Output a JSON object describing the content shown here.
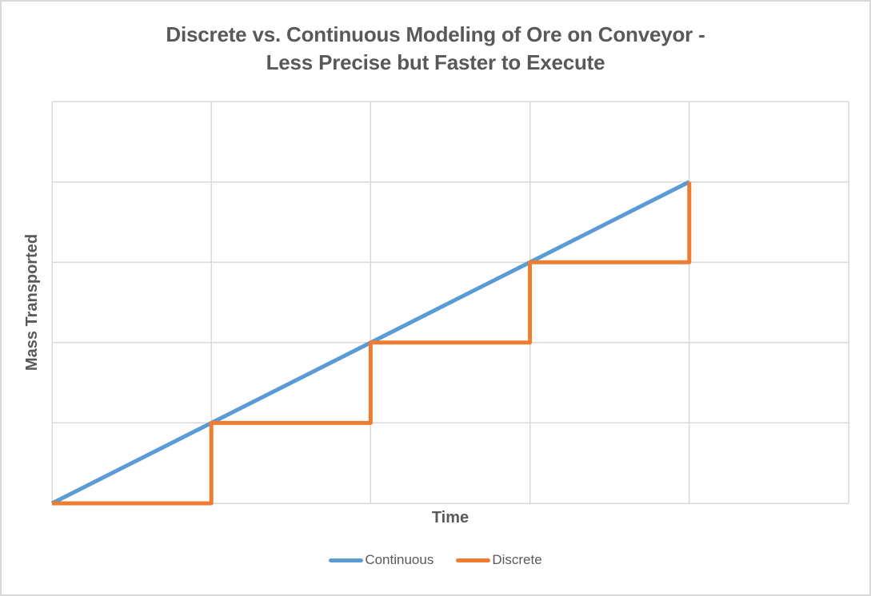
{
  "title": {
    "line1": "Discrete vs. Continuous Modeling of Ore on Conveyor -",
    "line2": "Less Precise but Faster to Execute"
  },
  "colors": {
    "continuous_blue": "#5B9BD5",
    "discrete_orange": "#ED7D31",
    "gridline": "#D9D9D9",
    "text": "#595959",
    "chart_border": "#D9D9D9",
    "background": "#FFFFFF"
  },
  "chart_data": {
    "type": "line",
    "title": "Discrete vs. Continuous Modeling of Ore on Conveyor - Less Precise but Faster to Execute",
    "xlabel": "Time",
    "ylabel": "Mass Transported",
    "xlim": [
      0,
      5
    ],
    "ylim": [
      0,
      5
    ],
    "x_tick_interval": 1,
    "y_tick_interval": 1,
    "tick_labels_shown": false,
    "grid": true,
    "legend_position": "bottom",
    "series": [
      {
        "name": "Continuous",
        "color": "#5B9BD5",
        "style": "straight-line",
        "points": [
          [
            0,
            0
          ],
          [
            4,
            4
          ]
        ]
      },
      {
        "name": "Discrete",
        "color": "#ED7D31",
        "style": "step",
        "points": [
          [
            0,
            0
          ],
          [
            1,
            0
          ],
          [
            1,
            1
          ],
          [
            2,
            1
          ],
          [
            2,
            2
          ],
          [
            3,
            2
          ],
          [
            3,
            3
          ],
          [
            4,
            3
          ],
          [
            4,
            4
          ]
        ]
      }
    ]
  }
}
